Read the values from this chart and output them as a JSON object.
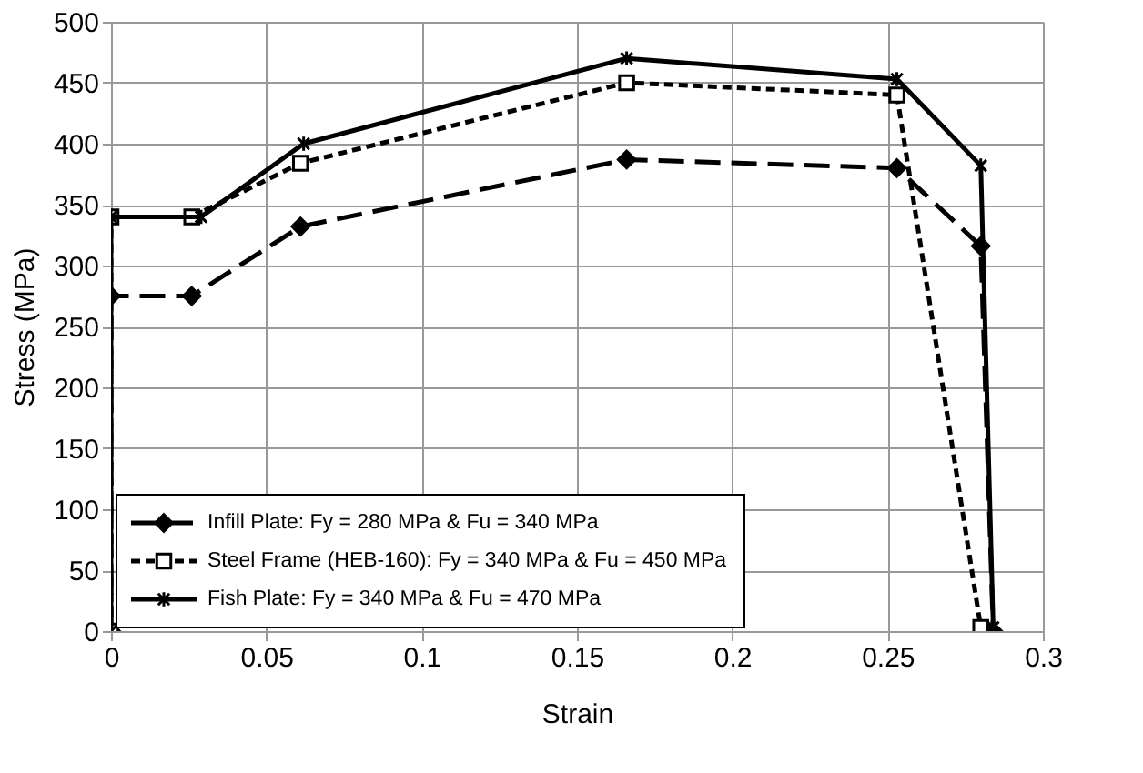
{
  "chart_data": {
    "type": "line",
    "xlabel": "Strain",
    "ylabel": "Stress (MPa)",
    "xlim": [
      0,
      0.3
    ],
    "xticks": [
      0,
      0.05,
      0.1,
      0.15,
      0.2,
      0.25,
      0.3
    ],
    "ylim": [
      0,
      500
    ],
    "yticks": [
      0,
      50,
      100,
      150,
      200,
      250,
      300,
      350,
      400,
      450,
      500
    ],
    "grid": true,
    "legend": "bottom left",
    "series": [
      {
        "name": "Infill Plate: Fy = 280 MPa & Fu = 340 MPa",
        "color": "#000000",
        "marker": "diamond",
        "line_style": "dashed",
        "x": [
          0,
          0,
          0.026,
          0.061,
          0.166,
          0.253,
          0.28,
          0.284
        ],
        "values": [
          0,
          275,
          275,
          332,
          387,
          380,
          316,
          0
        ]
      },
      {
        "name": "Steel Frame (HEB-160): Fy = 340 MPa & Fu = 450 MPa",
        "color": "#000000",
        "marker": "square",
        "line_style": "dotted",
        "x": [
          0,
          0,
          0.026,
          0.061,
          0.166,
          0.253,
          0.28
        ],
        "values": [
          0,
          340,
          340,
          384,
          450,
          440,
          3
        ]
      },
      {
        "name": "Fish Plate: Fy = 340 MPa & Fu = 470 MPa",
        "color": "#000000",
        "marker": "cross",
        "line_style": "solid",
        "x": [
          0,
          0,
          0.029,
          0.062,
          0.166,
          0.253,
          0.28,
          0.284
        ],
        "values": [
          0,
          340,
          340,
          400,
          470,
          453,
          382,
          3
        ]
      }
    ]
  }
}
